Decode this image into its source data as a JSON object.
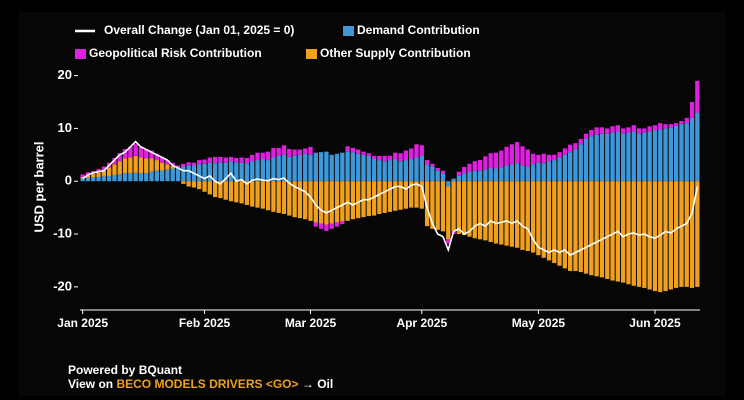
{
  "chart_data": {
    "type": "bar",
    "ylabel": "USD per barrel",
    "ylim": [
      -24,
      22
    ],
    "yticks": [
      -20,
      -10,
      0,
      10,
      20
    ],
    "categories": [
      "Jan 2025",
      null,
      null,
      null,
      null,
      null,
      null,
      null,
      null,
      null,
      null,
      null,
      null,
      null,
      null,
      null,
      null,
      null,
      null,
      null,
      null,
      null,
      null,
      "Feb 2025",
      null,
      null,
      null,
      null,
      null,
      null,
      null,
      null,
      null,
      null,
      null,
      null,
      null,
      null,
      null,
      null,
      null,
      null,
      null,
      "Mar 2025",
      null,
      null,
      null,
      null,
      null,
      null,
      null,
      null,
      null,
      null,
      null,
      null,
      null,
      null,
      null,
      null,
      null,
      null,
      null,
      null,
      "Apr 2025",
      null,
      null,
      null,
      null,
      null,
      null,
      null,
      null,
      null,
      null,
      null,
      null,
      null,
      null,
      null,
      null,
      null,
      null,
      null,
      null,
      null,
      "May 2025",
      null,
      null,
      null,
      null,
      null,
      null,
      null,
      null,
      null,
      null,
      null,
      null,
      null,
      null,
      null,
      null,
      null,
      null,
      null,
      null,
      null,
      "Jun 2025",
      null,
      null,
      null,
      null,
      null,
      null,
      null,
      null
    ],
    "series": [
      {
        "name": "Overall Change (Jan 01, 2025 = 0)",
        "type": "line",
        "color": "#ffffff",
        "values": [
          0.5,
          1.2,
          1.6,
          1.8,
          2.0,
          3.0,
          4.0,
          5.0,
          5.5,
          6.5,
          7.5,
          6.5,
          6.0,
          5.5,
          5.0,
          4.5,
          4.0,
          3.0,
          2.5,
          2.0,
          2.0,
          1.5,
          1.0,
          0.5,
          1.0,
          0.0,
          -0.5,
          0.5,
          1.5,
          0.0,
          0.3,
          -0.5,
          0.2,
          0.4,
          0.2,
          0.1,
          0.5,
          0.3,
          0.6,
          -0.4,
          -1.0,
          -1.5,
          -2.0,
          -3.0,
          -4.5,
          -5.5,
          -6.0,
          -5.5,
          -5.0,
          -4.5,
          -4.0,
          -4.5,
          -4.0,
          -3.5,
          -3.5,
          -3.0,
          -2.5,
          -2.0,
          -1.5,
          -1.0,
          -1.0,
          -1.5,
          -0.8,
          -0.5,
          -1.0,
          -5.0,
          -8.0,
          -10.0,
          -10.5,
          -13.0,
          -9.5,
          -9.0,
          -10.0,
          -9.5,
          -8.5,
          -8.0,
          -8.5,
          -7.5,
          -8.0,
          -7.8,
          -7.5,
          -8.0,
          -7.5,
          -8.5,
          -9.0,
          -11.0,
          -12.5,
          -13.0,
          -13.5,
          -13.0,
          -13.5,
          -13.0,
          -14.0,
          -13.5,
          -13.0,
          -12.5,
          -12.0,
          -11.5,
          -11.0,
          -10.5,
          -10.0,
          -9.5,
          -10.5,
          -10.0,
          -9.8,
          -10.2,
          -10.0,
          -10.5,
          -10.8,
          -10.2,
          -9.5,
          -9.8,
          -9.0,
          -8.5,
          -8.0,
          -6.0,
          -1.0
        ]
      },
      {
        "name": "Demand Contribution",
        "type": "bar",
        "color": "#3f97d8",
        "values": [
          0.5,
          0.6,
          0.8,
          0.8,
          1.0,
          1.0,
          1.2,
          1.3,
          1.5,
          1.5,
          1.6,
          1.5,
          1.5,
          1.8,
          2.0,
          2.0,
          2.2,
          2.4,
          2.5,
          2.8,
          3.0,
          3.0,
          3.2,
          3.3,
          3.5,
          3.4,
          3.6,
          3.5,
          3.8,
          3.6,
          3.5,
          3.4,
          3.8,
          4.0,
          4.2,
          4.0,
          4.5,
          4.8,
          5.0,
          4.6,
          4.8,
          5.0,
          5.2,
          5.0,
          5.4,
          5.5,
          5.6,
          5.0,
          5.2,
          5.4,
          5.6,
          5.5,
          5.2,
          5.0,
          4.8,
          4.2,
          4.0,
          3.8,
          4.0,
          4.2,
          3.8,
          4.0,
          4.2,
          4.5,
          4.8,
          3.2,
          2.8,
          2.0,
          1.5,
          -1.0,
          0.5,
          1.0,
          1.5,
          1.8,
          2.0,
          2.0,
          2.2,
          2.5,
          2.4,
          2.6,
          3.0,
          3.2,
          3.4,
          3.0,
          2.8,
          3.2,
          3.5,
          3.4,
          3.8,
          4.0,
          4.5,
          5.0,
          5.5,
          6.0,
          7.0,
          8.0,
          8.5,
          8.8,
          9.0,
          9.0,
          9.2,
          9.4,
          9.0,
          9.2,
          9.4,
          9.0,
          9.2,
          9.4,
          9.6,
          9.8,
          10.0,
          10.2,
          10.5,
          10.8,
          11.0,
          12.0,
          13.0
        ]
      },
      {
        "name": "Geopolitical Risk Contribution",
        "type": "bar",
        "color": "#e020e0",
        "values": [
          0.5,
          0.6,
          0.5,
          0.7,
          0.8,
          1.0,
          1.2,
          1.5,
          1.8,
          2.0,
          2.2,
          2.0,
          1.8,
          1.5,
          1.2,
          1.0,
          0.8,
          0.6,
          0.5,
          0.5,
          0.6,
          0.5,
          0.8,
          0.8,
          1.0,
          1.2,
          1.0,
          1.0,
          0.8,
          0.8,
          1.0,
          1.0,
          1.2,
          1.4,
          1.2,
          1.6,
          1.8,
          1.5,
          1.8,
          1.5,
          1.2,
          1.0,
          1.0,
          1.5,
          -0.8,
          -1.0,
          -1.2,
          -1.0,
          -0.8,
          -0.5,
          1.0,
          0.8,
          0.8,
          0.6,
          0.5,
          0.6,
          0.8,
          1.0,
          0.8,
          1.2,
          1.5,
          1.8,
          2.0,
          2.5,
          2.0,
          0.8,
          0.5,
          0.5,
          0.5,
          -0.8,
          -0.5,
          0.8,
          1.2,
          1.5,
          1.8,
          2.0,
          2.5,
          2.8,
          3.0,
          3.2,
          3.5,
          3.8,
          4.0,
          3.6,
          3.2,
          2.0,
          1.5,
          1.8,
          1.2,
          1.0,
          1.0,
          1.2,
          1.4,
          1.2,
          1.0,
          1.0,
          1.2,
          1.4,
          1.2,
          1.0,
          1.2,
          1.2,
          1.0,
          1.0,
          1.2,
          1.0,
          0.8,
          1.0,
          1.0,
          1.2,
          0.8,
          0.6,
          0.5,
          0.6,
          1.0,
          3.0,
          6.0
        ]
      },
      {
        "name": "Other Supply Contribution",
        "type": "bar",
        "color": "#f0a020",
        "values": [
          0.3,
          0.5,
          0.6,
          0.8,
          1.0,
          1.5,
          2.0,
          2.5,
          2.8,
          3.0,
          3.2,
          3.0,
          2.8,
          2.5,
          2.0,
          1.5,
          1.0,
          0.5,
          0.0,
          -0.5,
          -1.0,
          -1.2,
          -1.5,
          -2.0,
          -2.5,
          -3.0,
          -3.2,
          -3.5,
          -3.8,
          -4.0,
          -4.2,
          -4.5,
          -4.8,
          -5.0,
          -5.2,
          -5.5,
          -5.8,
          -6.0,
          -6.2,
          -6.5,
          -6.8,
          -7.0,
          -7.2,
          -7.5,
          -7.8,
          -8.0,
          -8.2,
          -8.0,
          -7.8,
          -7.6,
          -7.5,
          -7.2,
          -7.0,
          -6.8,
          -6.6,
          -6.5,
          -6.2,
          -6.0,
          -5.8,
          -5.6,
          -5.4,
          -5.2,
          -5.0,
          -5.0,
          -5.2,
          -8.5,
          -9.0,
          -9.2,
          -9.5,
          -10.0,
          -9.5,
          -10.0,
          -10.2,
          -10.5,
          -10.8,
          -11.0,
          -11.2,
          -11.5,
          -11.8,
          -12.0,
          -12.2,
          -12.4,
          -12.6,
          -13.0,
          -13.2,
          -13.5,
          -14.0,
          -14.5,
          -15.0,
          -15.5,
          -16.0,
          -16.5,
          -17.0,
          -17.0,
          -17.2,
          -17.5,
          -17.8,
          -18.0,
          -18.2,
          -18.5,
          -18.8,
          -19.0,
          -19.2,
          -19.5,
          -19.8,
          -20.0,
          -20.2,
          -20.5,
          -20.8,
          -21.0,
          -20.8,
          -20.5,
          -20.2,
          -20.0,
          -20.0,
          -20.2,
          -20.0
        ]
      }
    ]
  },
  "footer": {
    "powered": "Powered by BQuant",
    "view": "View on",
    "command": "BECO MODELS DRIVERS <GO>",
    "target": "→ Oil"
  }
}
